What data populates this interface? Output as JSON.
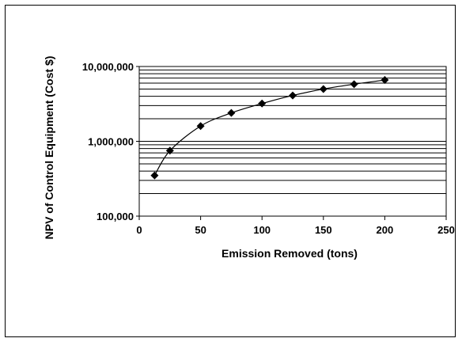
{
  "chart_data": {
    "type": "scatter",
    "title": "",
    "xlabel": "Emission Removed (tons)",
    "ylabel": "NPV of Control Equipment (Cost $)",
    "x_ticks": [
      "0",
      "50",
      "100",
      "150",
      "200",
      "250"
    ],
    "y_ticks": [
      "100,000",
      "1,000,000",
      "10,000,000"
    ],
    "xlim": [
      0,
      250
    ],
    "ylim": [
      100000,
      10000000
    ],
    "y_scale": "log",
    "grid": "horizontal minor and major lines",
    "legend": "none",
    "colors": {
      "line": "#000000",
      "marker": "#000000",
      "grid": "#000000"
    },
    "series": [
      {
        "marker": "diamond",
        "x": [
          12.5,
          25,
          50,
          75,
          100,
          125,
          150,
          175,
          200
        ],
        "y": [
          350000,
          750000,
          1600000,
          2400000,
          3200000,
          4100000,
          5000000,
          5800000,
          6600000
        ]
      }
    ]
  }
}
